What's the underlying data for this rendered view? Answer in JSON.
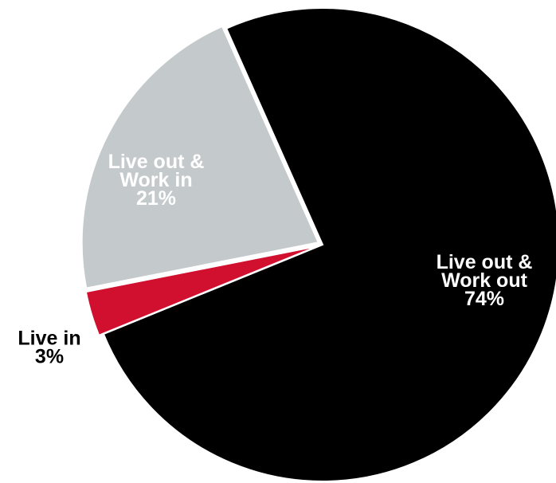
{
  "chart_data": {
    "type": "pie",
    "title": "",
    "slices": [
      {
        "key": "live-out-work-out",
        "label_lines": [
          "Live out &",
          "Work out"
        ],
        "value_label": "74%",
        "value": 74,
        "color": "#000000",
        "label_color": "#ffffff",
        "exploded": false
      },
      {
        "key": "live-in",
        "label_lines": [
          "Live in"
        ],
        "value_label": "3%",
        "value": 3,
        "color": "#d0102e",
        "label_color": "#000000",
        "exploded": true
      },
      {
        "key": "live-out-work-in",
        "label_lines": [
          "Live out &",
          "Work in"
        ],
        "value_label": "21%",
        "value": 21,
        "color": "#c4c9cc",
        "label_color": "#ffffff",
        "exploded": true
      }
    ]
  }
}
